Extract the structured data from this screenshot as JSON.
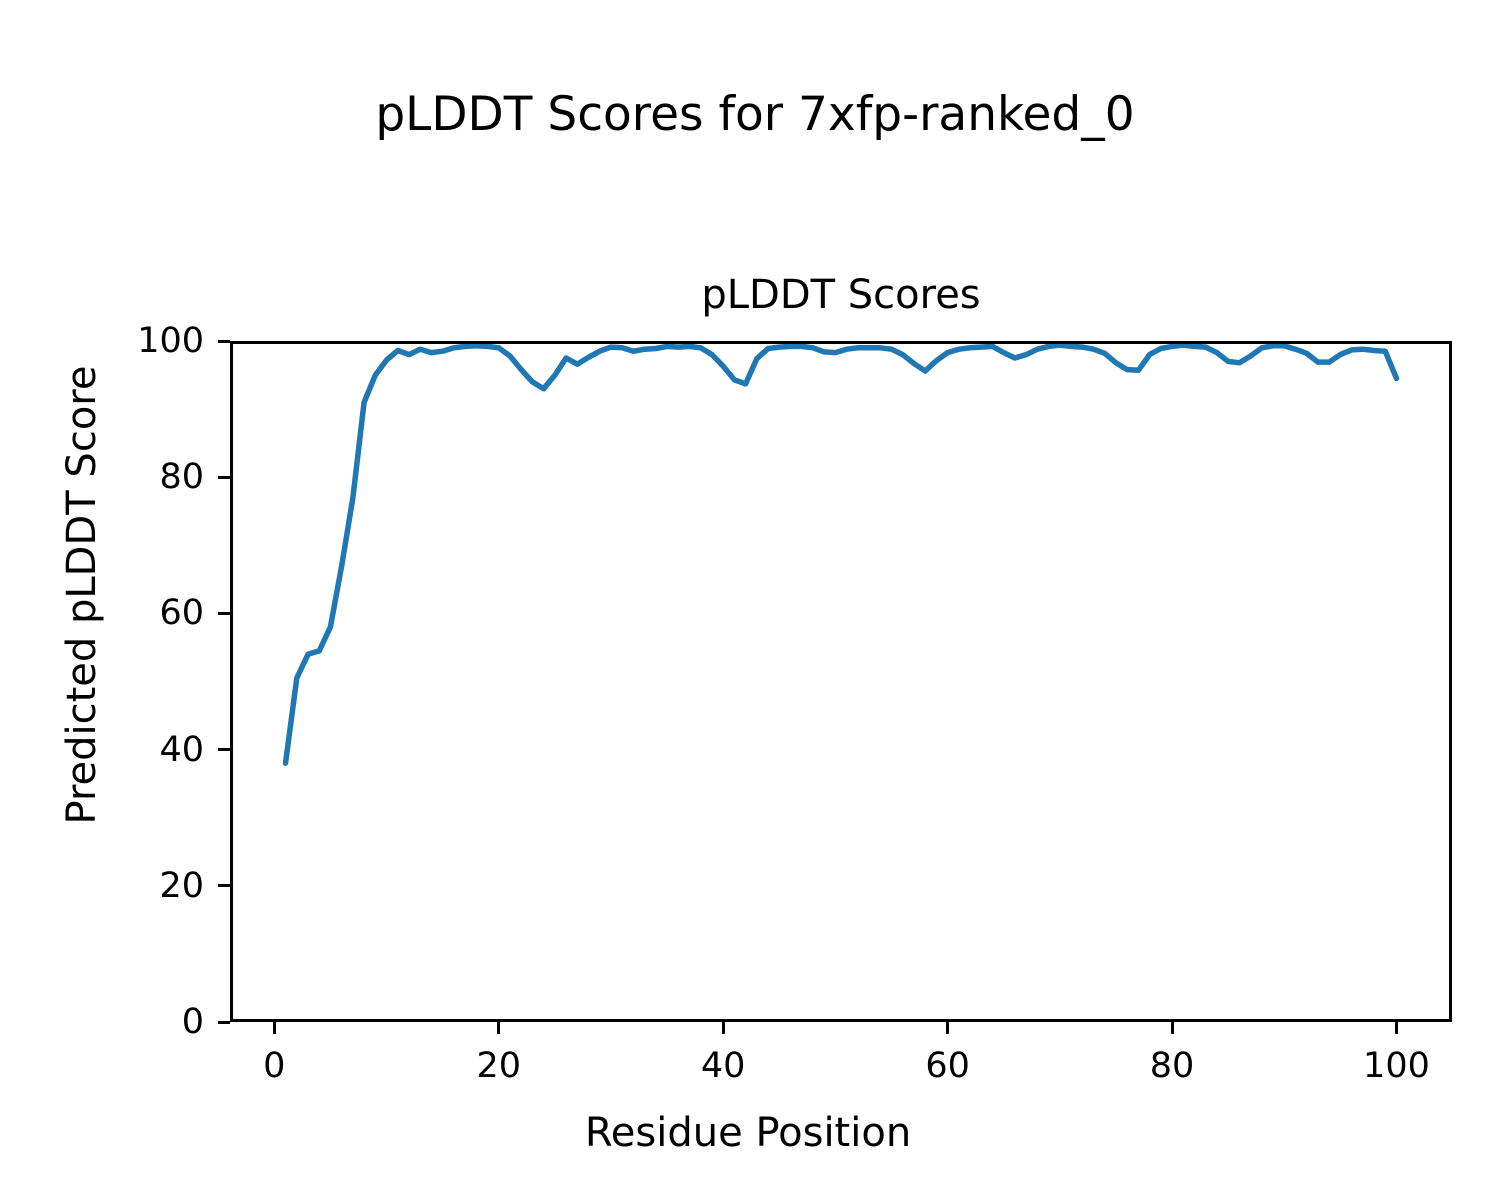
{
  "figure": {
    "suptitle": "pLDDT Scores for 7xfp-ranked_0",
    "background_color": "#ffffff",
    "text_color": "#000000"
  },
  "chart_data": {
    "type": "line",
    "title": "pLDDT Scores",
    "xlabel": "Residue Position",
    "ylabel": "Predicted pLDDT Score",
    "xlim": [
      -3.95,
      104.95
    ],
    "ylim": [
      0,
      100
    ],
    "xticks": [
      0,
      20,
      40,
      60,
      80,
      100
    ],
    "yticks": [
      0,
      20,
      40,
      60,
      80,
      100
    ],
    "grid": false,
    "legend": "none",
    "line_color": "#1f77b4",
    "x": [
      1,
      2,
      3,
      4,
      5,
      6,
      7,
      8,
      9,
      10,
      11,
      12,
      13,
      14,
      15,
      16,
      17,
      18,
      19,
      20,
      21,
      22,
      23,
      24,
      25,
      26,
      27,
      28,
      29,
      30,
      31,
      32,
      33,
      34,
      35,
      36,
      37,
      38,
      39,
      40,
      41,
      42,
      43,
      44,
      45,
      46,
      47,
      48,
      49,
      50,
      51,
      52,
      53,
      54,
      55,
      56,
      57,
      58,
      59,
      60,
      61,
      62,
      63,
      64,
      65,
      66,
      67,
      68,
      69,
      70,
      71,
      72,
      73,
      74,
      75,
      76,
      77,
      78,
      79,
      80,
      81,
      82,
      83,
      84,
      85,
      86,
      87,
      88,
      89,
      90,
      91,
      92,
      93,
      94,
      95,
      96,
      97,
      98,
      99,
      100
    ],
    "series": [
      {
        "name": "pLDDT",
        "values": [
          38.0,
          50.5,
          54.0,
          54.5,
          58.0,
          67.0,
          77.0,
          91.0,
          95.0,
          97.2,
          98.6,
          98.0,
          98.8,
          98.3,
          98.5,
          99.0,
          99.2,
          99.3,
          99.2,
          99.0,
          97.8,
          95.8,
          94.0,
          93.0,
          95.0,
          97.5,
          96.6,
          97.6,
          98.5,
          99.1,
          99.0,
          98.5,
          98.8,
          98.9,
          99.2,
          99.1,
          99.2,
          99.0,
          98.0,
          96.3,
          94.3,
          93.7,
          97.4,
          98.9,
          99.1,
          99.2,
          99.2,
          99.0,
          98.4,
          98.3,
          98.8,
          99.0,
          99.0,
          99.0,
          98.8,
          98.0,
          96.7,
          95.6,
          97.1,
          98.3,
          98.8,
          99.0,
          99.1,
          99.2,
          98.3,
          97.5,
          98.0,
          98.8,
          99.2,
          99.4,
          99.2,
          99.1,
          98.8,
          98.2,
          96.8,
          95.8,
          95.7,
          98.0,
          98.9,
          99.2,
          99.4,
          99.2,
          99.1,
          98.3,
          97.0,
          96.8,
          97.8,
          99.0,
          99.3,
          99.3,
          98.8,
          98.2,
          96.9,
          96.9,
          98.0,
          98.7,
          98.8,
          98.6,
          98.5,
          94.5
        ]
      }
    ]
  }
}
